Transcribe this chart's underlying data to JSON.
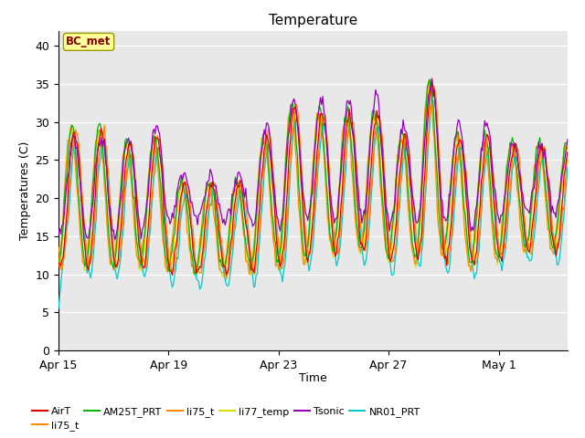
{
  "title": "Temperature",
  "xlabel": "Time",
  "ylabel": "Temperatures (C)",
  "ylim": [
    0,
    42
  ],
  "yticks": [
    0,
    5,
    10,
    15,
    20,
    25,
    30,
    35,
    40
  ],
  "annotation": "BC_met",
  "background_color": "#e8e8e8",
  "x_ticks_labels": [
    "Apr 15",
    "Apr 19",
    "Apr 23",
    "Apr 27",
    "May 1"
  ],
  "x_ticks_days": [
    0,
    4,
    8,
    12,
    16
  ],
  "legend_entries": [
    {
      "label": "AirT",
      "color": "#dd0000"
    },
    {
      "label": "li75_t",
      "color": "#0000cc"
    },
    {
      "label": "AM25T_PRT",
      "color": "#00bb00"
    },
    {
      "label": "li75_t",
      "color": "#ff8800"
    },
    {
      "label": "li77_temp",
      "color": "#dddd00"
    },
    {
      "label": "Tsonic",
      "color": "#9900bb"
    },
    {
      "label": "NR01_PRT",
      "color": "#00cccc"
    }
  ],
  "figsize": [
    6.4,
    4.8
  ],
  "dpi": 100
}
